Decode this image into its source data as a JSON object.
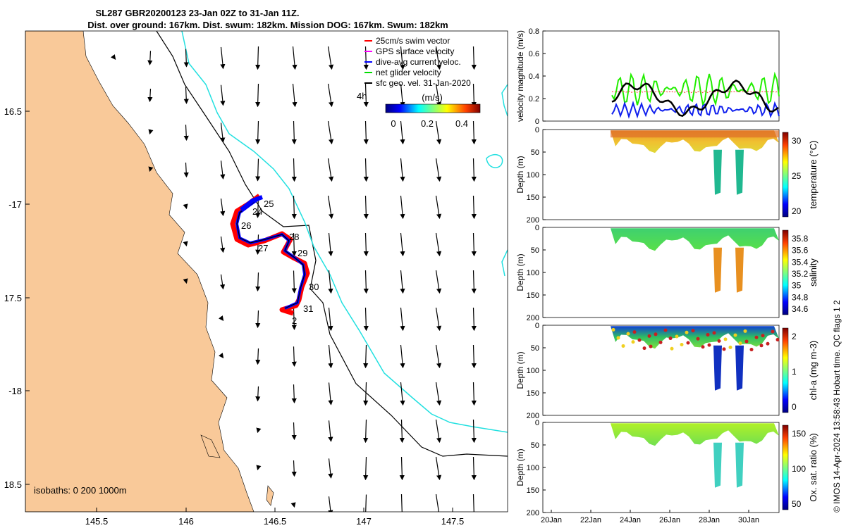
{
  "header": {
    "title_line1": "SL287 GBR20200123 23-Jan 02Z to 31-Jan 11Z.",
    "title_line2": "Dist. over ground: 167km. Dist. swum: 182km. Mission DOG: 167km. Swum: 182km"
  },
  "map": {
    "lon_ticks": [
      "145.5",
      "146",
      "146.5",
      "147",
      "147.5"
    ],
    "lat_ticks": [
      "16.5",
      "-17",
      "17.5",
      "-18",
      "18.5"
    ],
    "isobath_label": "isobaths: 0   200  1000m",
    "legend": [
      {
        "label": "25cm/s swim vector",
        "color": "#ff0000"
      },
      {
        "label": "GPS surface velocity",
        "color": "#ff00ff"
      },
      {
        "label": "dive-avg current veloc.",
        "color": "#0000ff"
      },
      {
        "label": "net glider velocity",
        "color": "#00dd00"
      },
      {
        "label": "sfc geo. vel. 31-Jan-2020",
        "color": "#000000"
      }
    ],
    "colorbar": {
      "unit": "(m/s)",
      "ticks": [
        "0",
        "0.2",
        "0.4"
      ]
    },
    "day_labels": [
      "24",
      "25",
      "26",
      "27",
      "28",
      "29",
      "30",
      "31",
      "2"
    ],
    "stray_label": "4h"
  },
  "panels": {
    "velocity": {
      "ylabel": "velocity magnitude (m/s)",
      "yticks": [
        "0",
        "0.2",
        "0.4",
        "0.6",
        "0.8"
      ]
    },
    "depth_ylabel": "Depth (m)",
    "depth_ticks": [
      "0",
      "50",
      "100",
      "150",
      "200"
    ],
    "temperature": {
      "label": "temperature (°C)",
      "ticks": [
        "30",
        "25",
        "20"
      ]
    },
    "salinity": {
      "label": "salinity",
      "ticks": [
        "35.8",
        "35.6",
        "35.4",
        "35.2",
        "35",
        "34.8",
        "34.6"
      ]
    },
    "chla": {
      "label": "chl-a (mg m-3)",
      "ticks": [
        "2",
        "1",
        "0"
      ]
    },
    "oxygen": {
      "label": "Ox. sat. ratio (%)",
      "ticks": [
        "150",
        "100",
        "50"
      ]
    },
    "time_ticks": [
      "20Jan",
      "22Jan",
      "24Jan",
      "26Jan",
      "28Jan",
      "30Jan"
    ]
  },
  "footer": {
    "credit": "© IMOS 14-Apr-2024 13:58:43 Hobart time. QC flags 1  2"
  }
}
